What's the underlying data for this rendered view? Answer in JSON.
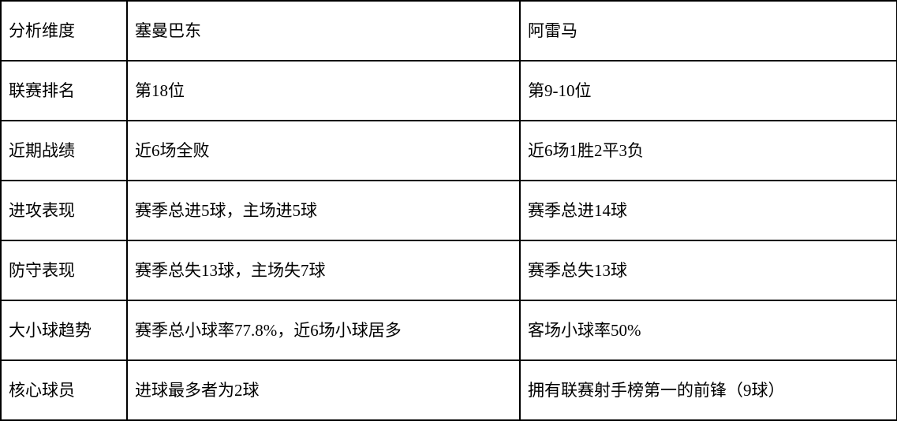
{
  "table": {
    "header": [
      "分析维度",
      "塞曼巴东",
      "阿雷马"
    ],
    "rows": [
      [
        "联赛排名",
        "第18位",
        "第9-10位"
      ],
      [
        "近期战绩",
        "近6场全败",
        "近6场1胜2平3负"
      ],
      [
        "进攻表现",
        "赛季总进5球，主场进5球",
        "赛季总进14球"
      ],
      [
        "防守表现",
        "赛季总失13球，主场失7球",
        "赛季总失13球"
      ],
      [
        "大小球趋势",
        "赛季总小球率77.8%，近6场小球居多",
        "客场小球率50%"
      ],
      [
        "核心球员",
        "进球最多者为2球",
        "拥有联赛射手榜第一的前锋（9球）"
      ]
    ],
    "colors": {
      "border": "#000000",
      "background": "#ffffff",
      "text": "#000000"
    }
  }
}
